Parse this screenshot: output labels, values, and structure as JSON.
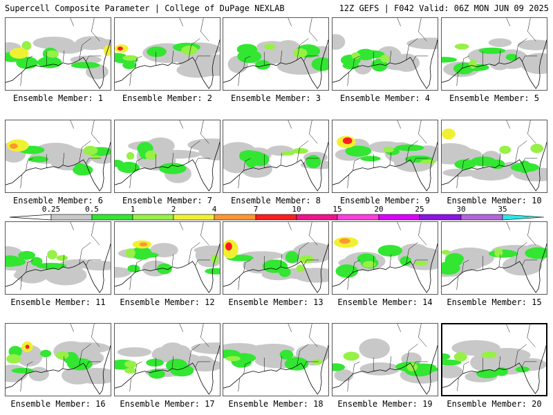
{
  "header": {
    "title_left": "Supercell Composite Parameter | College of DuPage NEXLAB",
    "title_right": "12Z GEFS | F042 Valid: 06Z MON JUN 09 2025"
  },
  "members": [
    {
      "label": "Ensemble Member: 1"
    },
    {
      "label": "Ensemble Member: 2"
    },
    {
      "label": "Ensemble Member: 3"
    },
    {
      "label": "Ensemble Member: 4"
    },
    {
      "label": "Ensemble Member: 5"
    },
    {
      "label": "Ensemble Member: 6"
    },
    {
      "label": "Ensemble Member: 7"
    },
    {
      "label": "Ensemble Member: 8"
    },
    {
      "label": "Ensemble Member: 9"
    },
    {
      "label": "Ensemble Member: 10"
    },
    {
      "label": "Ensemble Member: 11"
    },
    {
      "label": "Ensemble Member: 12"
    },
    {
      "label": "Ensemble Member: 13"
    },
    {
      "label": "Ensemble Member: 14"
    },
    {
      "label": "Ensemble Member: 15"
    },
    {
      "label": "Ensemble Member: 16"
    },
    {
      "label": "Ensemble Member: 17"
    },
    {
      "label": "Ensemble Member: 18"
    },
    {
      "label": "Ensemble Member: 19"
    },
    {
      "label": "Ensemble Member: 20"
    }
  ],
  "selected_member": 20,
  "legend": {
    "ticks": [
      "0.25",
      "0.5",
      "1",
      "2",
      "4",
      "7",
      "10",
      "15",
      "20",
      "25",
      "30",
      "35"
    ],
    "colors": [
      "#c8c8c8",
      "#32e632",
      "#96f046",
      "#f0f032",
      "#ff9632",
      "#ff1e1e",
      "#f0148c",
      "#ff3cdc",
      "#dc00ff",
      "#8c14e6",
      "#b464dc",
      "#32e6e6"
    ]
  }
}
